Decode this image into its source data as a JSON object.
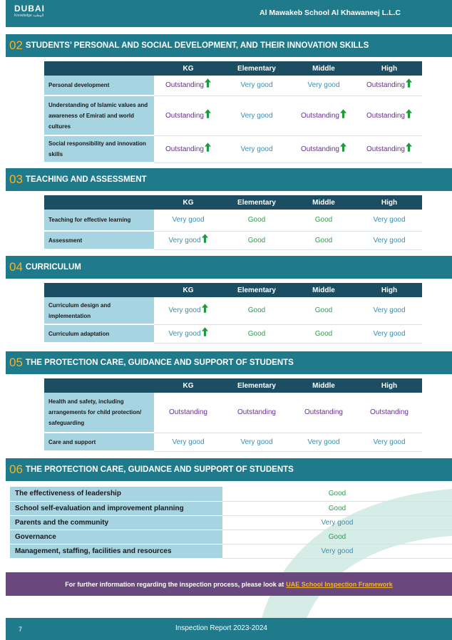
{
  "header": {
    "logo_main": "DUBAI",
    "logo_sub": "Knowledge الوطنية",
    "school": "Al Mawakeb School Al Khawaneej L.L.C"
  },
  "colors": {
    "teal": "#1f7a8c",
    "navy_header": "#1c4e63",
    "label_bg": "#a6d4e0",
    "outstanding": "#6a2f90",
    "very_good": "#3a8fb0",
    "good": "#2e9e4f",
    "arrow": "#1e9a3c",
    "accent": "#f2b52b",
    "purple_bar": "#6a477d"
  },
  "columns": [
    "KG",
    "Elementary",
    "Middle",
    "High"
  ],
  "sections": [
    {
      "num": "02",
      "title": "STUDENTS’ PERSONAL AND SOCIAL DEVELOPMENT, AND THEIR INNOVATION SKILLS",
      "rows": [
        {
          "label": "Personal development",
          "values": [
            {
              "text": "Outstanding",
              "rating": "out",
              "arrow": true
            },
            {
              "text": "Very good",
              "rating": "vg",
              "arrow": false
            },
            {
              "text": "Very good",
              "rating": "vg",
              "arrow": false
            },
            {
              "text": "Outstanding",
              "rating": "out",
              "arrow": true
            }
          ]
        },
        {
          "label": "Understanding of Islamic values and awareness of Emirati and world cultures",
          "values": [
            {
              "text": "Outstanding",
              "rating": "out",
              "arrow": true
            },
            {
              "text": "Very good",
              "rating": "vg",
              "arrow": false
            },
            {
              "text": "Outstanding",
              "rating": "out",
              "arrow": true
            },
            {
              "text": "Outstanding",
              "rating": "out",
              "arrow": true
            }
          ]
        },
        {
          "label": "Social responsibility and innovation skills",
          "values": [
            {
              "text": "Outstanding",
              "rating": "out",
              "arrow": true
            },
            {
              "text": "Very good",
              "rating": "vg",
              "arrow": false
            },
            {
              "text": "Outstanding",
              "rating": "out",
              "arrow": true
            },
            {
              "text": "Outstanding",
              "rating": "out",
              "arrow": true
            }
          ]
        }
      ]
    },
    {
      "num": "03",
      "title": "TEACHING AND ASSESSMENT",
      "rows": [
        {
          "label": "Teaching for effective learning",
          "values": [
            {
              "text": "Very good",
              "rating": "vg",
              "arrow": false
            },
            {
              "text": "Good",
              "rating": "good",
              "arrow": false
            },
            {
              "text": "Good",
              "rating": "good",
              "arrow": false
            },
            {
              "text": "Very good",
              "rating": "vg",
              "arrow": false
            }
          ]
        },
        {
          "label": "Assessment",
          "values": [
            {
              "text": "Very good",
              "rating": "vg",
              "arrow": true
            },
            {
              "text": "Good",
              "rating": "good",
              "arrow": false
            },
            {
              "text": "Good",
              "rating": "good",
              "arrow": false
            },
            {
              "text": "Very good",
              "rating": "vg",
              "arrow": false
            }
          ]
        }
      ]
    },
    {
      "num": "04",
      "title": "CURRICULUM",
      "rows": [
        {
          "label": "Curriculum design and implementation",
          "values": [
            {
              "text": "Very good",
              "rating": "vg",
              "arrow": true
            },
            {
              "text": "Good",
              "rating": "good",
              "arrow": false
            },
            {
              "text": "Good",
              "rating": "good",
              "arrow": false
            },
            {
              "text": "Very good",
              "rating": "vg",
              "arrow": false
            }
          ]
        },
        {
          "label": "Curriculum adaptation",
          "values": [
            {
              "text": "Very good",
              "rating": "vg",
              "arrow": true
            },
            {
              "text": "Good",
              "rating": "good",
              "arrow": false
            },
            {
              "text": "Good",
              "rating": "good",
              "arrow": false
            },
            {
              "text": "Very good",
              "rating": "vg",
              "arrow": false
            }
          ]
        }
      ]
    },
    {
      "num": "05",
      "title": "THE PROTECTION CARE, GUIDANCE AND SUPPORT OF STUDENTS",
      "rows": [
        {
          "label": "Health and safety, including arrangements for child protection/ safeguarding",
          "values": [
            {
              "text": "Outstanding",
              "rating": "out",
              "arrow": false
            },
            {
              "text": "Outstanding",
              "rating": "out",
              "arrow": false
            },
            {
              "text": "Outstanding",
              "rating": "out",
              "arrow": false
            },
            {
              "text": "Outstanding",
              "rating": "out",
              "arrow": false
            }
          ]
        },
        {
          "label": "Care and support",
          "values": [
            {
              "text": "Very good",
              "rating": "vg",
              "arrow": false
            },
            {
              "text": "Very good",
              "rating": "vg",
              "arrow": false
            },
            {
              "text": "Very good",
              "rating": "vg",
              "arrow": false
            },
            {
              "text": "Very good",
              "rating": "vg",
              "arrow": false
            }
          ]
        }
      ]
    }
  ],
  "section06": {
    "num": "06",
    "title": "THE PROTECTION CARE, GUIDANCE AND SUPPORT OF STUDENTS",
    "rows": [
      {
        "label": "The effectiveness of leadership",
        "text": "Good",
        "rating": "good"
      },
      {
        "label": "School self-evaluation and improvement planning",
        "text": "Good",
        "rating": "good"
      },
      {
        "label": "Parents and the community",
        "text": "Very good",
        "rating": "vg"
      },
      {
        "label": "Governance",
        "text": "Good",
        "rating": "good"
      },
      {
        "label": "Management, staffing, facilities and resources",
        "text": "Very good",
        "rating": "vg"
      }
    ]
  },
  "info": {
    "text": "For further information regarding the inspection process, please look at",
    "link": "UAE School Inspection Framework"
  },
  "footer": {
    "page": "7",
    "title": "Inspection Report 2023-2024"
  }
}
